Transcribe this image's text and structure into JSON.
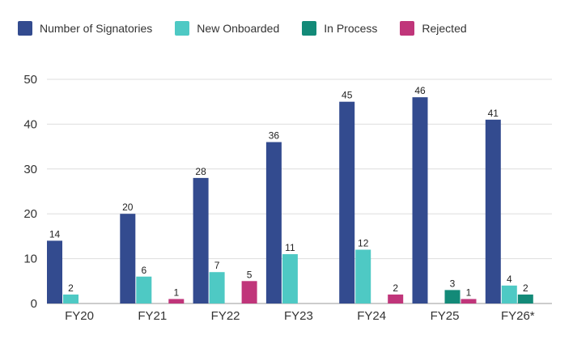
{
  "chart_data": {
    "type": "bar",
    "title": "",
    "xlabel": "",
    "ylabel": "",
    "categories": [
      "FY20",
      "FY21",
      "FY22",
      "FY23",
      "FY24",
      "FY25",
      "FY26*"
    ],
    "series": [
      {
        "name": "Number of Signatories",
        "color": "#334b8f",
        "values": [
          14,
          20,
          28,
          36,
          45,
          46,
          41
        ]
      },
      {
        "name": "New Onboarded",
        "color": "#4ec9c4",
        "values": [
          2,
          6,
          7,
          11,
          12,
          null,
          4
        ]
      },
      {
        "name": "In Process",
        "color": "#138a78",
        "values": [
          null,
          null,
          null,
          null,
          null,
          3,
          2
        ]
      },
      {
        "name": "Rejected",
        "color": "#c0357a",
        "values": [
          null,
          1,
          5,
          null,
          2,
          1,
          null
        ]
      }
    ],
    "ylim": [
      0,
      50
    ],
    "yticks": [
      0,
      10,
      20,
      30,
      40,
      50
    ],
    "grid": true,
    "legend_position": "top-left"
  }
}
